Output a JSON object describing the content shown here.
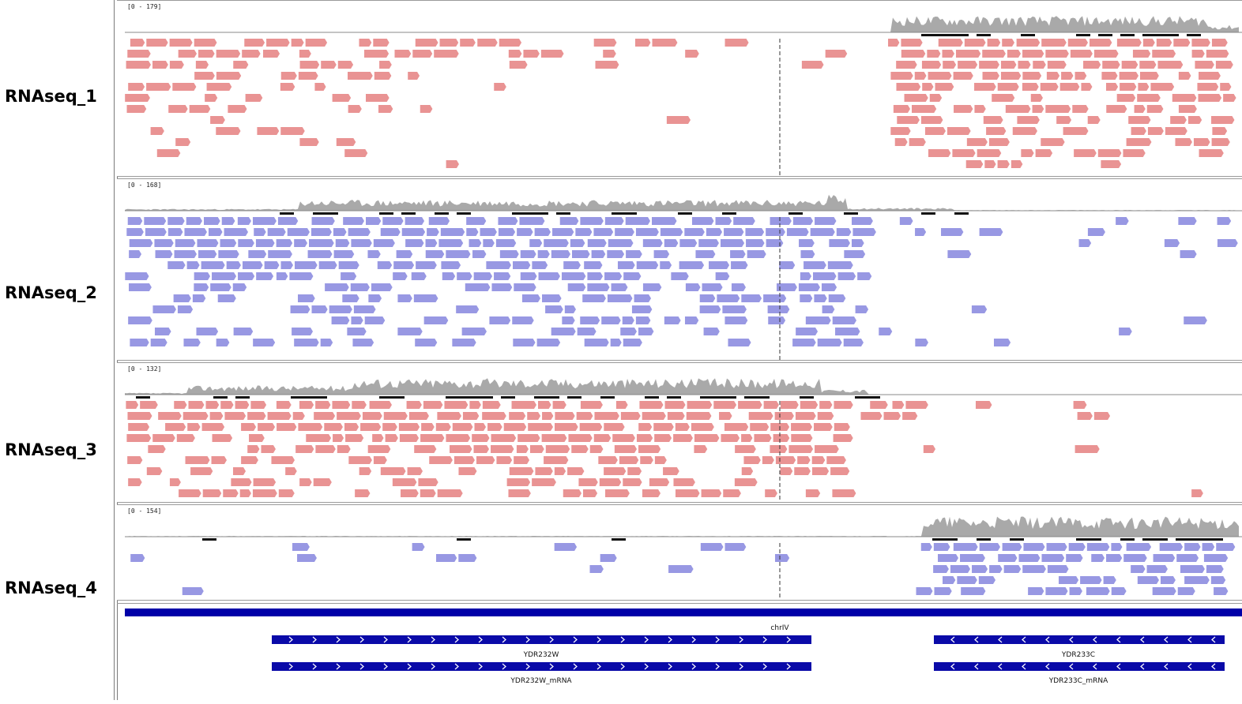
{
  "tracks": [
    {
      "name": "RNAseq_1",
      "range": "[0 - 179]",
      "strand_color": "#e99393"
    },
    {
      "name": "RNAseq_2",
      "range": "[0 - 168]",
      "strand_color": "#9898e3"
    },
    {
      "name": "RNAseq_3",
      "range": "[0 - 132]",
      "strand_color": "#e99393"
    },
    {
      "name": "RNAseq_4",
      "range": "[0 - 154]",
      "strand_color": "#9898e3"
    }
  ],
  "colors": {
    "coverage": "#a9a9a9",
    "gene": "#0a0aa8",
    "reference_bar": "#0000a8",
    "center_line": "#333333"
  },
  "annotation": {
    "chromosome": "chrIV",
    "genes": [
      {
        "label": "YDR232W",
        "strand": "+"
      },
      {
        "label": "YDR232W_mRNA",
        "strand": "+"
      },
      {
        "label": "YDR233C",
        "strand": "-"
      },
      {
        "label": "YDR233C_mRNA",
        "strand": "-"
      }
    ]
  }
}
